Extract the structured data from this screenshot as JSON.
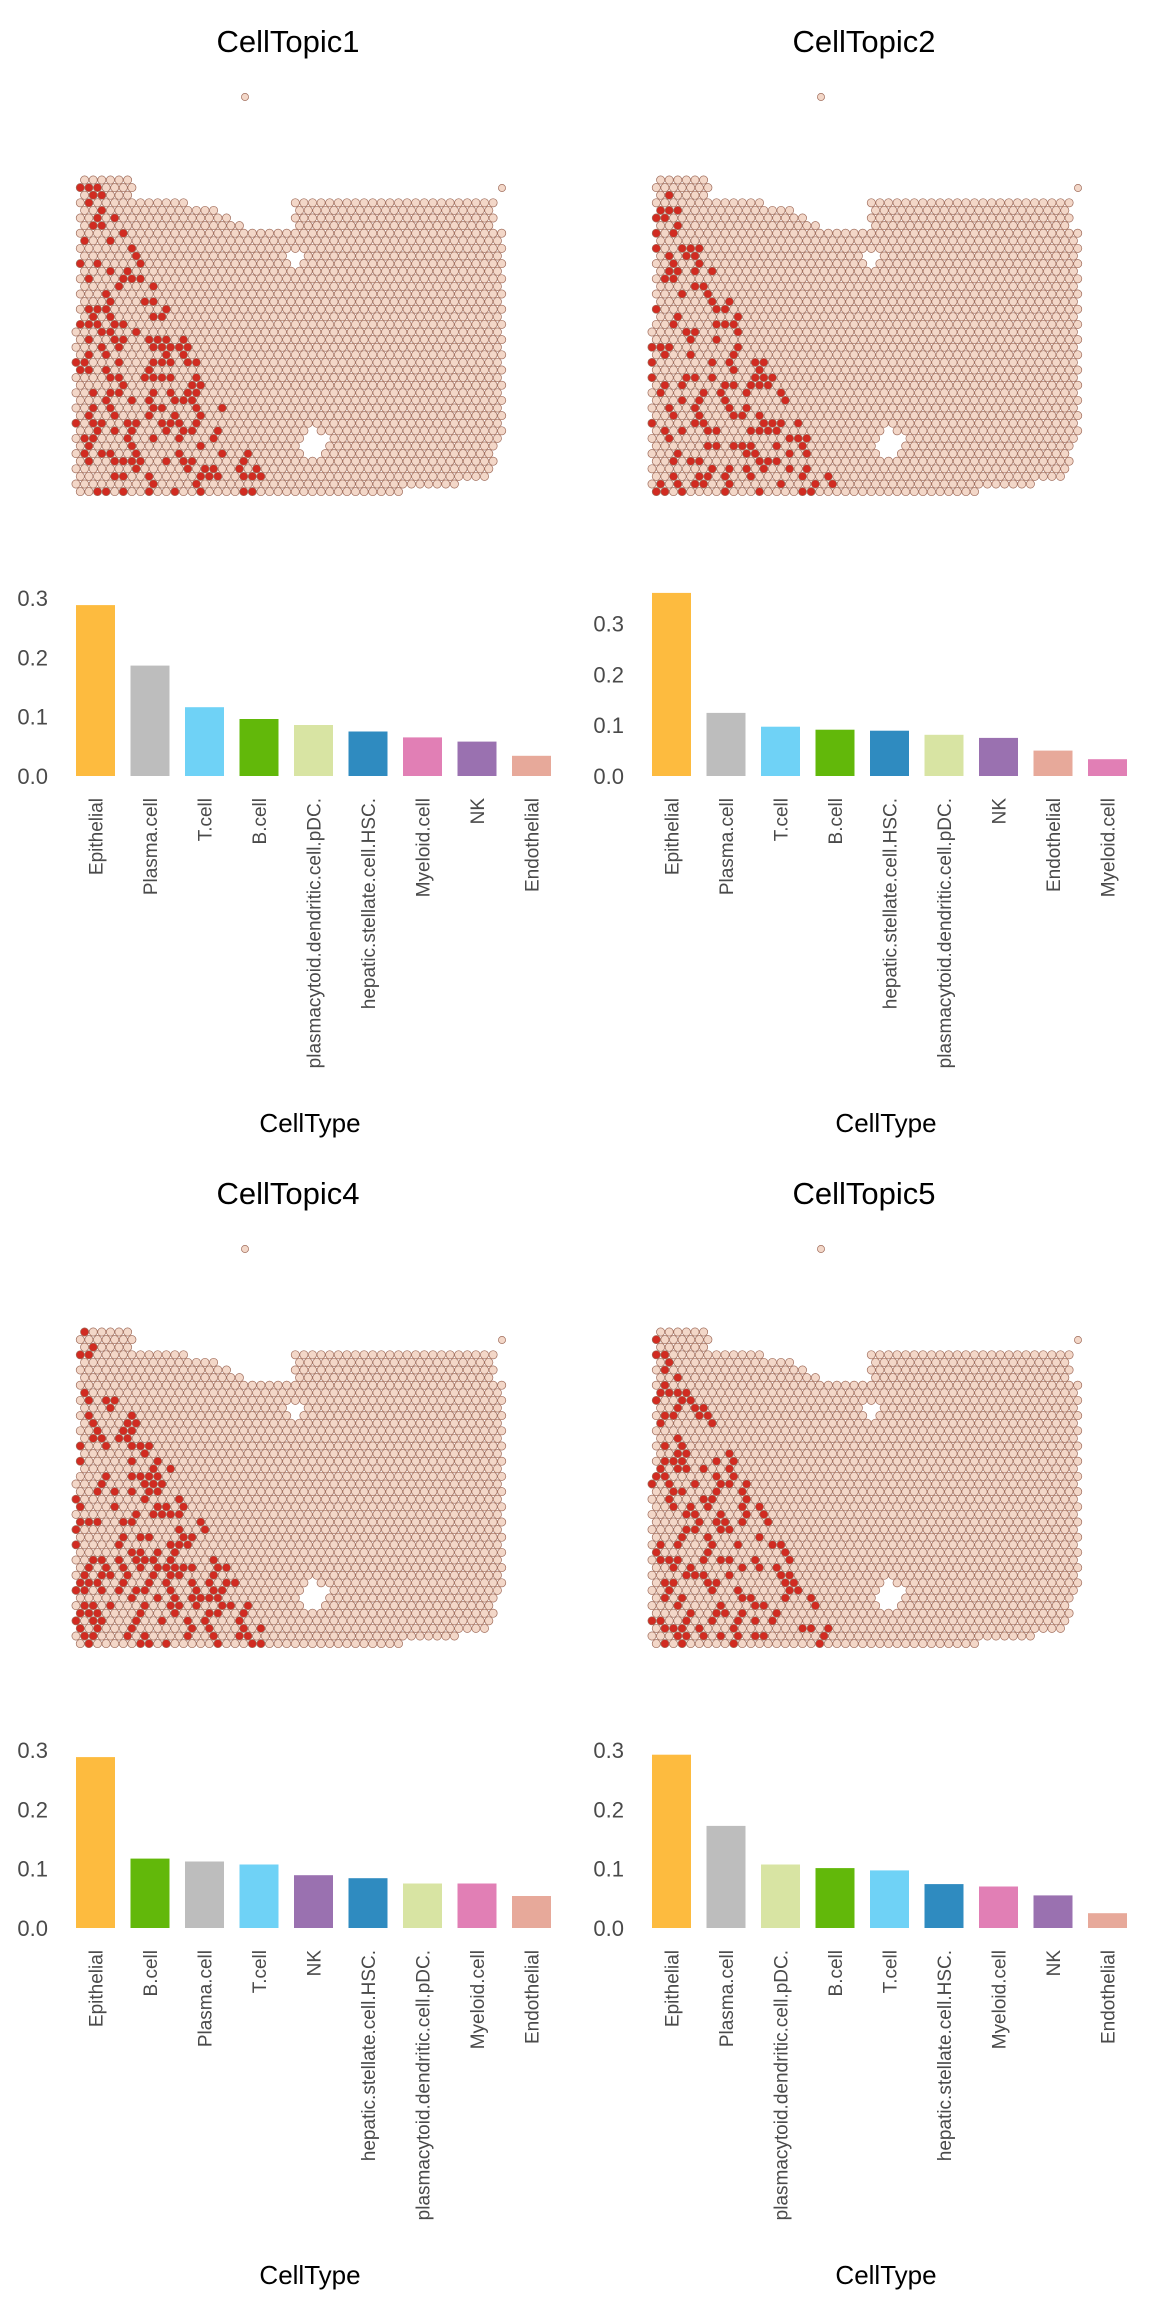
{
  "colors": {
    "spot_fill": "#f3d7c8",
    "spot_stroke": "#a06d5c",
    "spot_high": "#d12b21",
    "categories": {
      "Epithelial": "#fdbb3f",
      "Plasma.cell": "#bdbdbd",
      "T.cell": "#6fd2f6",
      "B.cell": "#62b80a",
      "plasmacytoid.dendritic.cell.pDC.": "#d8e4a3",
      "hepatic.stellate.cell.HSC.": "#2f8bc0",
      "Myeloid.cell": "#e17fb5",
      "NK": "#9a71b0",
      "Endothelial": "#e7a99a"
    }
  },
  "chart_data": [
    {
      "type": "bar",
      "title": "CellTopic1",
      "xlabel": "CellType",
      "ylim": [
        0,
        0.3
      ],
      "yticks": [
        "0.0",
        "0.1",
        "0.2",
        "0.3"
      ],
      "categories": [
        "Epithelial",
        "Plasma.cell",
        "T.cell",
        "B.cell",
        "plasmacytoid.dendritic.cell.pDC.",
        "hepatic.stellate.cell.HSC.",
        "Myeloid.cell",
        "NK",
        "Endothelial"
      ],
      "values": [
        0.288,
        0.186,
        0.116,
        0.096,
        0.086,
        0.075,
        0.065,
        0.058,
        0.034
      ]
    },
    {
      "type": "bar",
      "title": "CellTopic2",
      "xlabel": "CellType",
      "ylim": [
        0,
        0.35
      ],
      "yticks": [
        "0.0",
        "0.1",
        "0.2",
        "0.3"
      ],
      "categories": [
        "Epithelial",
        "Plasma.cell",
        "T.cell",
        "B.cell",
        "hepatic.stellate.cell.HSC.",
        "plasmacytoid.dendritic.cell.pDC.",
        "NK",
        "Endothelial",
        "Myeloid.cell"
      ],
      "values": [
        0.36,
        0.124,
        0.097,
        0.091,
        0.089,
        0.081,
        0.075,
        0.05,
        0.033
      ]
    },
    {
      "type": "bar",
      "title": "CellTopic4",
      "xlabel": "CellType",
      "ylim": [
        0,
        0.3
      ],
      "yticks": [
        "0.0",
        "0.1",
        "0.2",
        "0.3"
      ],
      "categories": [
        "Epithelial",
        "B.cell",
        "Plasma.cell",
        "T.cell",
        "NK",
        "hepatic.stellate.cell.HSC.",
        "plasmacytoid.dendritic.cell.pDC.",
        "Myeloid.cell",
        "Endothelial"
      ],
      "values": [
        0.288,
        0.117,
        0.112,
        0.107,
        0.089,
        0.084,
        0.075,
        0.075,
        0.054
      ]
    },
    {
      "type": "bar",
      "title": "CellTopic5",
      "xlabel": "CellType",
      "ylim": [
        0,
        0.3
      ],
      "yticks": [
        "0.0",
        "0.1",
        "0.2",
        "0.3"
      ],
      "categories": [
        "Epithelial",
        "Plasma.cell",
        "plasmacytoid.dendritic.cell.pDC.",
        "B.cell",
        "T.cell",
        "hepatic.stellate.cell.HSC.",
        "Myeloid.cell",
        "NK",
        "Endothelial"
      ],
      "values": [
        0.292,
        0.172,
        0.107,
        0.101,
        0.097,
        0.074,
        0.07,
        0.055,
        0.025
      ]
    }
  ]
}
